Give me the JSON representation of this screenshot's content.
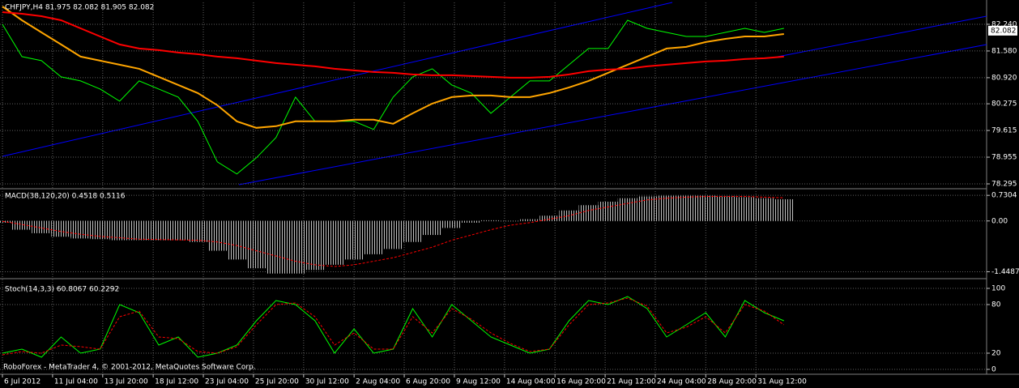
{
  "chart_data": [
    {
      "type": "line",
      "title": "CHFJPY,H4  81.975 82.082 81.905 82.082",
      "x": [
        0,
        6,
        12,
        18,
        24,
        30,
        36,
        42,
        48,
        54,
        60,
        66,
        72,
        78,
        84,
        90,
        96,
        102,
        108,
        114,
        120,
        126,
        132,
        138,
        144,
        150,
        156,
        162,
        168,
        174,
        180,
        186,
        192,
        198,
        204,
        210,
        216,
        222,
        228,
        234,
        240
      ],
      "series": [
        {
          "color": "#00ff00",
          "values": [
            82.24,
            81.44,
            81.34,
            80.94,
            80.84,
            80.64,
            80.34,
            80.84,
            80.64,
            80.44,
            79.84,
            78.84,
            78.54,
            78.94,
            79.44,
            80.44,
            79.84,
            79.84,
            79.84,
            79.64,
            80.44,
            80.94,
            81.14,
            80.74,
            80.54,
            80.04,
            80.44,
            80.84,
            80.84,
            81.24,
            81.64,
            81.64,
            82.34,
            82.14,
            82.04,
            81.94,
            81.94,
            82.04,
            82.14,
            82.04,
            82.14
          ]
        },
        {
          "color": "#ffa500",
          "values": [
            82.68,
            82.34,
            82.04,
            81.74,
            81.44,
            81.34,
            81.24,
            81.14,
            80.94,
            80.74,
            80.54,
            80.24,
            79.84,
            79.68,
            79.72,
            79.84,
            79.84,
            79.84,
            79.88,
            79.88,
            79.78,
            80.04,
            80.28,
            80.44,
            80.48,
            80.48,
            80.44,
            80.44,
            80.54,
            80.68,
            80.84,
            81.04,
            81.24,
            81.44,
            81.64,
            81.68,
            81.8,
            81.88,
            81.94,
            81.94,
            82.0
          ]
        },
        {
          "color": "#ff0000",
          "values": [
            82.54,
            82.5,
            82.44,
            82.34,
            82.14,
            81.94,
            81.74,
            81.64,
            81.6,
            81.54,
            81.5,
            81.44,
            81.4,
            81.34,
            81.28,
            81.24,
            81.2,
            81.14,
            81.1,
            81.06,
            81.04,
            81.0,
            80.98,
            80.98,
            80.96,
            80.94,
            80.92,
            80.92,
            80.94,
            81.0,
            81.08,
            81.12,
            81.14,
            81.2,
            81.24,
            81.28,
            81.32,
            81.34,
            81.38,
            81.4,
            81.44
          ]
        }
      ],
      "ylim": [
        78.195,
        82.78
      ],
      "yticks": [
        {
          "value": 82.24,
          "label": "82.240"
        },
        {
          "value": 81.58,
          "label": "81.580"
        },
        {
          "value": 80.92,
          "label": "80.920"
        },
        80.275,
        79.615,
        78.955,
        78.295
      ],
      "last_price": 82.082,
      "grid": true
    },
    {
      "type": "bar",
      "title": "MACD(38,120,20) 0.4518 0.5116",
      "x": [
        0,
        6,
        12,
        18,
        24,
        30,
        36,
        42,
        48,
        54,
        60,
        66,
        72,
        78,
        84,
        90,
        96,
        102,
        108,
        114,
        120,
        126,
        132,
        138,
        144,
        150,
        156,
        162,
        168,
        174,
        180,
        186,
        192,
        198,
        204,
        210,
        216,
        222,
        228,
        234,
        240
      ],
      "series": [
        {
          "color": "#c0c0c0",
          "type": "bar",
          "values": [
            -0.05,
            -0.25,
            -0.35,
            -0.45,
            -0.5,
            -0.52,
            -0.55,
            -0.55,
            -0.55,
            -0.55,
            -0.6,
            -0.85,
            -1.1,
            -1.35,
            -1.5,
            -1.5,
            -1.4,
            -1.25,
            -1.1,
            -0.95,
            -0.8,
            -0.6,
            -0.4,
            -0.2,
            -0.05,
            0.02,
            0.0,
            0.05,
            0.15,
            0.3,
            0.45,
            0.55,
            0.65,
            0.7,
            0.72,
            0.72,
            0.72,
            0.7,
            0.68,
            0.65,
            0.62
          ]
        },
        {
          "color": "#ff0000",
          "type": "line",
          "style": "dashed",
          "values": [
            -0.01,
            -0.1,
            -0.2,
            -0.3,
            -0.38,
            -0.44,
            -0.48,
            -0.52,
            -0.53,
            -0.54,
            -0.55,
            -0.6,
            -0.7,
            -0.85,
            -1.0,
            -1.15,
            -1.25,
            -1.3,
            -1.25,
            -1.15,
            -1.05,
            -0.9,
            -0.75,
            -0.55,
            -0.4,
            -0.25,
            -0.12,
            -0.05,
            0.05,
            0.15,
            0.3,
            0.4,
            0.5,
            0.6,
            0.65,
            0.68,
            0.7,
            0.7,
            0.7,
            0.68,
            0.66
          ]
        }
      ],
      "ylim": [
        -1.6,
        0.85
      ],
      "yticks": [
        0.7304,
        {
          "value": 0,
          "label": "0.00"
        },
        -1.4487
      ],
      "grid": true
    },
    {
      "type": "line",
      "title": "Stoch(14,3,3) 60.8067 60.2292",
      "x": [
        0,
        6,
        12,
        18,
        24,
        30,
        36,
        42,
        48,
        54,
        60,
        66,
        72,
        78,
        84,
        90,
        96,
        102,
        108,
        114,
        120,
        126,
        132,
        138,
        144,
        150,
        156,
        162,
        168,
        174,
        180,
        186,
        192,
        198,
        204,
        210,
        216,
        222,
        228,
        234,
        240
      ],
      "series": [
        {
          "color": "#00ff00",
          "values": [
            20,
            25,
            15,
            40,
            20,
            25,
            80,
            70,
            30,
            40,
            15,
            20,
            30,
            60,
            85,
            80,
            60,
            20,
            50,
            20,
            25,
            75,
            40,
            80,
            60,
            40,
            30,
            20,
            25,
            60,
            85,
            80,
            90,
            75,
            40,
            55,
            70,
            40,
            85,
            70,
            60
          ]
        },
        {
          "color": "#ff0000",
          "style": "dashed",
          "values": [
            18,
            22,
            20,
            30,
            28,
            25,
            65,
            72,
            40,
            38,
            22,
            20,
            28,
            55,
            80,
            82,
            65,
            30,
            45,
            25,
            25,
            65,
            45,
            75,
            62,
            45,
            32,
            22,
            25,
            55,
            80,
            82,
            88,
            78,
            45,
            52,
            65,
            45,
            80,
            72,
            55
          ]
        }
      ],
      "ylim": [
        -6,
        111
      ],
      "yticks": [
        100,
        80,
        20,
        0
      ],
      "grid": true,
      "xlim": [
        0,
        302.25
      ],
      "xticks": [
        {
          "value": 0,
          "label": "6 Jul 2012"
        },
        {
          "value": 15.4,
          "label": "11 Jul 04:00"
        },
        {
          "value": 30.8,
          "label": "13 Jul 20:00"
        },
        {
          "value": 46.3,
          "label": "18 Jul 12:00"
        },
        {
          "value": 61.7,
          "label": "23 Jul 04:00"
        },
        {
          "value": 77.1,
          "label": "25 Jul 20:00"
        },
        {
          "value": 92.5,
          "label": "30 Jul 12:00"
        },
        {
          "value": 108,
          "label": "2 Aug 04:00"
        },
        {
          "value": 123.4,
          "label": "6 Aug 20:00"
        },
        {
          "value": 138.8,
          "label": "9 Aug 12:00"
        },
        {
          "value": 154.2,
          "label": "14 Aug 04:00"
        },
        {
          "value": 169.7,
          "label": "16 Aug 20:00"
        },
        {
          "value": 185.1,
          "label": "21 Aug 12:00"
        },
        {
          "value": 200.5,
          "label": "24 Aug 04:00"
        },
        {
          "value": 216,
          "label": "28 Aug 20:00"
        },
        {
          "value": 231.4,
          "label": "31 Aug 12:00"
        }
      ]
    }
  ],
  "footer": "RoboForex - MetaTrader 4, © 2001-2012, MetaQuotes Software Corp."
}
